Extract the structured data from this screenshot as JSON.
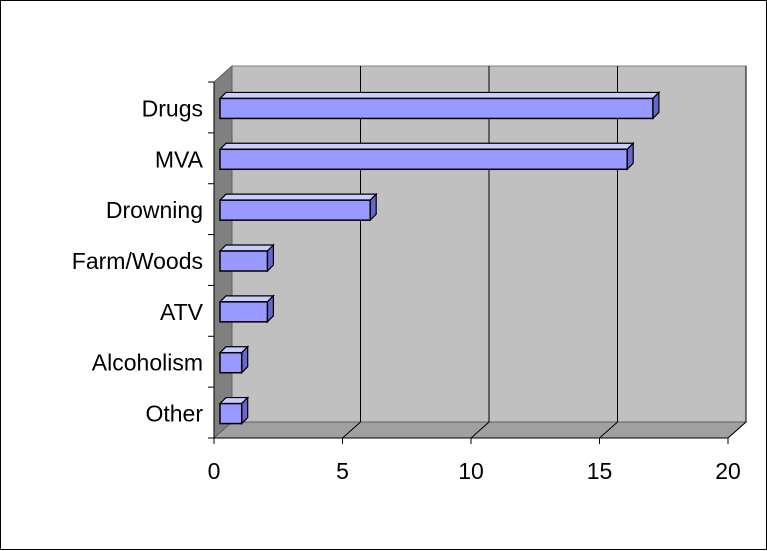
{
  "chart_data": {
    "type": "bar",
    "orientation": "horizontal",
    "style": "3d",
    "categories": [
      "Drugs",
      "MVA",
      "Drowning",
      "Farm/Woods",
      "ATV",
      "Alcoholism",
      "Other"
    ],
    "values": [
      17,
      16,
      6,
      2,
      2,
      1,
      1
    ],
    "xlim": [
      0,
      20
    ],
    "xticks": [
      0,
      5,
      10,
      15,
      20
    ],
    "title": "",
    "xlabel": "",
    "ylabel": "",
    "grid": true,
    "legend": "none",
    "colors": {
      "bar_face": "#9999ff",
      "bar_top": "#ccccff",
      "bar_side": "#6666cc",
      "bar_edge": "#000000",
      "plot_back": "#c0c0c0",
      "plot_side": "#808080",
      "plot_floor": "#a0a0a0"
    }
  }
}
